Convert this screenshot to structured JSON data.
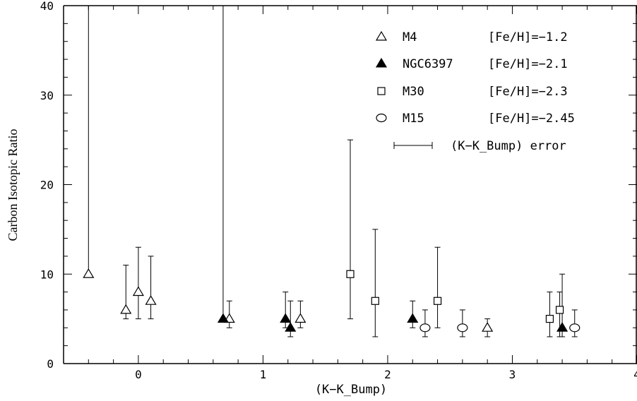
{
  "chart_data": {
    "type": "scatter",
    "xlabel": "(K−K_Bump)",
    "ylabel": "Carbon Isotopic Ratio",
    "xlim": [
      -0.6,
      4.0
    ],
    "ylim": [
      0,
      40
    ],
    "xticks": [
      "0",
      "1",
      "2",
      "3",
      "4"
    ],
    "yticks": [
      "0",
      "10",
      "20",
      "30",
      "40"
    ],
    "legend_position": "top-right",
    "series": [
      {
        "name": "M4",
        "feh": "[Fe/H]=−1.2",
        "marker": "triangle-open",
        "points": [
          {
            "x": -0.4,
            "y": 10,
            "ylo": 10,
            "yhi": 40
          },
          {
            "x": -0.1,
            "y": 6,
            "ylo": 5,
            "yhi": 11
          },
          {
            "x": 0.0,
            "y": 8,
            "ylo": 5,
            "yhi": 13
          },
          {
            "x": 0.1,
            "y": 7,
            "ylo": 5,
            "yhi": 12
          },
          {
            "x": 0.73,
            "y": 5,
            "ylo": 4,
            "yhi": 7
          },
          {
            "x": 1.3,
            "y": 5,
            "ylo": 4,
            "yhi": 7
          },
          {
            "x": 2.8,
            "y": 4,
            "ylo": 3,
            "yhi": 5
          }
        ]
      },
      {
        "name": "NGC6397",
        "feh": "[Fe/H]=−2.1",
        "marker": "triangle-filled",
        "points": [
          {
            "x": 0.68,
            "y": 5,
            "ylo": 5,
            "yhi": 40
          },
          {
            "x": 1.18,
            "y": 5,
            "ylo": 4,
            "yhi": 8
          },
          {
            "x": 1.22,
            "y": 4,
            "ylo": 3,
            "yhi": 7
          },
          {
            "x": 2.2,
            "y": 5,
            "ylo": 4,
            "yhi": 7
          },
          {
            "x": 3.4,
            "y": 4,
            "ylo": 3,
            "yhi": 10
          }
        ]
      },
      {
        "name": "M30",
        "feh": "[Fe/H]=−2.3",
        "marker": "square-open",
        "points": [
          {
            "x": 1.7,
            "y": 10,
            "ylo": 5,
            "yhi": 25
          },
          {
            "x": 1.9,
            "y": 7,
            "ylo": 3,
            "yhi": 15
          },
          {
            "x": 2.4,
            "y": 7,
            "ylo": 4,
            "yhi": 13
          },
          {
            "x": 3.3,
            "y": 5,
            "ylo": 3,
            "yhi": 8
          },
          {
            "x": 3.38,
            "y": 6,
            "ylo": 3,
            "yhi": 8
          }
        ]
      },
      {
        "name": "M15",
        "feh": "[Fe/H]=−2.45",
        "marker": "circle-open",
        "points": [
          {
            "x": 2.3,
            "y": 4,
            "ylo": 3,
            "yhi": 6
          },
          {
            "x": 2.6,
            "y": 4,
            "ylo": 3,
            "yhi": 6
          },
          {
            "x": 3.5,
            "y": 4,
            "ylo": 3,
            "yhi": 6
          }
        ]
      }
    ],
    "error_key_label": "(K−K_Bump) error"
  }
}
